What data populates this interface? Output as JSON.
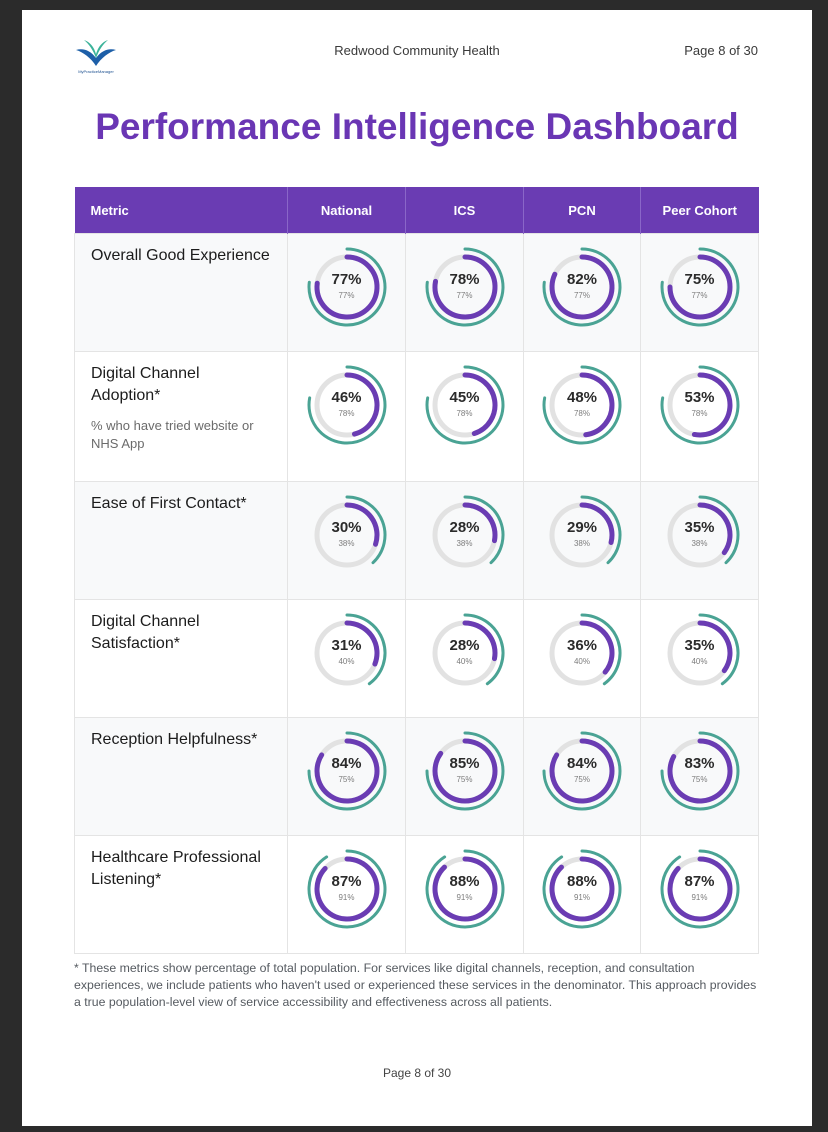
{
  "header": {
    "logo_text": "MyPracticeManager",
    "practice_name": "Redwood Community Health",
    "page_label": "Page 8 of 30"
  },
  "title": "Performance Intelligence Dashboard",
  "table": {
    "columns": [
      "Metric",
      "National",
      "ICS",
      "PCN",
      "Peer Cohort"
    ],
    "rows": [
      {
        "metric": "Overall Good Experience",
        "sub": "",
        "values": [
          "77%",
          "78%",
          "82%",
          "75%"
        ],
        "benchmark": "77%"
      },
      {
        "metric": "Digital Channel Adoption*",
        "sub": "% who have tried website or NHS App",
        "values": [
          "46%",
          "45%",
          "48%",
          "53%"
        ],
        "benchmark": "78%"
      },
      {
        "metric": "Ease of First Contact*",
        "sub": "",
        "values": [
          "30%",
          "28%",
          "29%",
          "35%"
        ],
        "benchmark": "38%"
      },
      {
        "metric": "Digital Channel Satisfaction*",
        "sub": "",
        "values": [
          "31%",
          "28%",
          "36%",
          "35%"
        ],
        "benchmark": "40%"
      },
      {
        "metric": "Reception Helpfulness*",
        "sub": "",
        "values": [
          "84%",
          "85%",
          "84%",
          "83%"
        ],
        "benchmark": "75%"
      },
      {
        "metric": "Healthcare Professional Listening*",
        "sub": "",
        "values": [
          "87%",
          "88%",
          "88%",
          "87%"
        ],
        "benchmark": "91%"
      }
    ]
  },
  "footnote": "* These metrics show percentage of total population. For services like digital channels, reception, and consultation experiences, we include patients who haven't used or experienced these services in the denominator. This approach provides a true population-level view of service accessibility and effectiveness across all patients.",
  "footer": "Page 8 of 30",
  "colors": {
    "brand_purple": "#6a36b4",
    "gauge_purple": "#6a3cb3",
    "benchmark_teal": "#4aa394",
    "track_grey": "#e2e2e2"
  }
}
